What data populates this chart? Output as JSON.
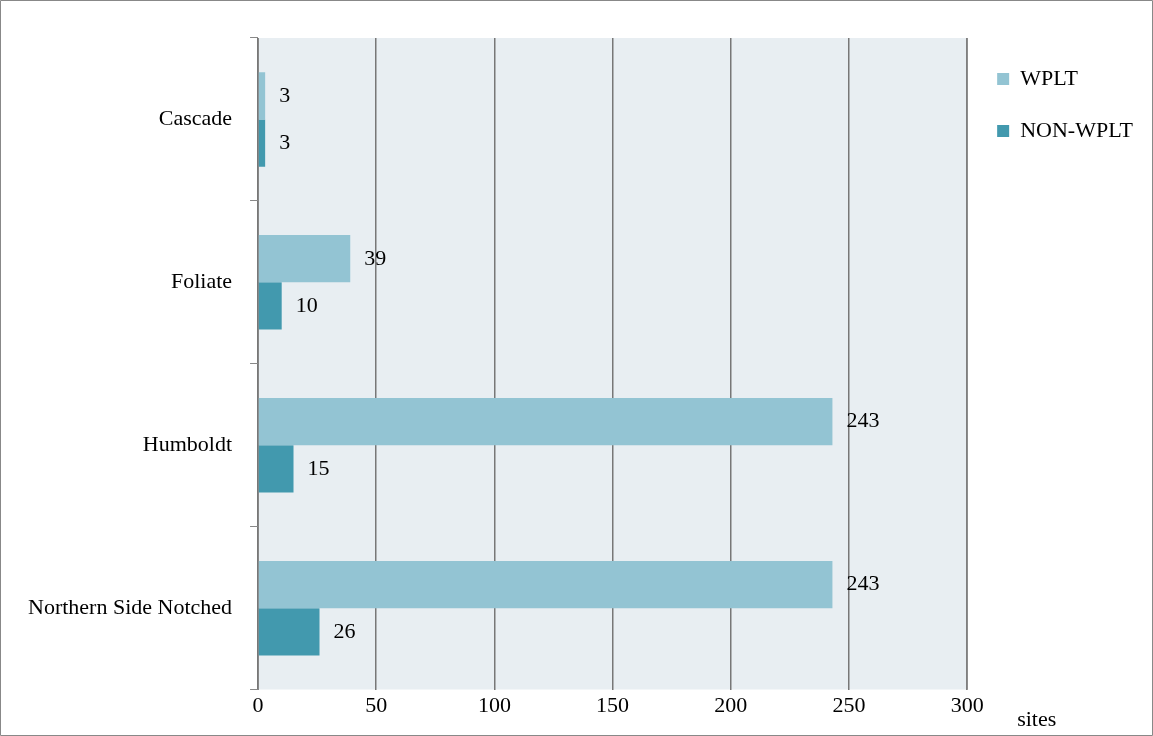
{
  "chart_data": {
    "type": "bar",
    "orientation": "horizontal",
    "xlabel": "sites",
    "categories": [
      "Cascade",
      "Foliate",
      "Humboldt",
      "Northern Side Notched"
    ],
    "series": [
      {
        "name": "WPLT",
        "color": "#93c4d3",
        "values": [
          3,
          39,
          243,
          243
        ]
      },
      {
        "name": "NON-WPLT",
        "color": "#4299ae",
        "values": [
          3,
          10,
          15,
          26
        ]
      }
    ],
    "xlim": [
      0,
      300
    ],
    "xticks": [
      0,
      50,
      100,
      150,
      200,
      250,
      300
    ],
    "grid": "x",
    "legend": "top right",
    "data_labels": true
  }
}
